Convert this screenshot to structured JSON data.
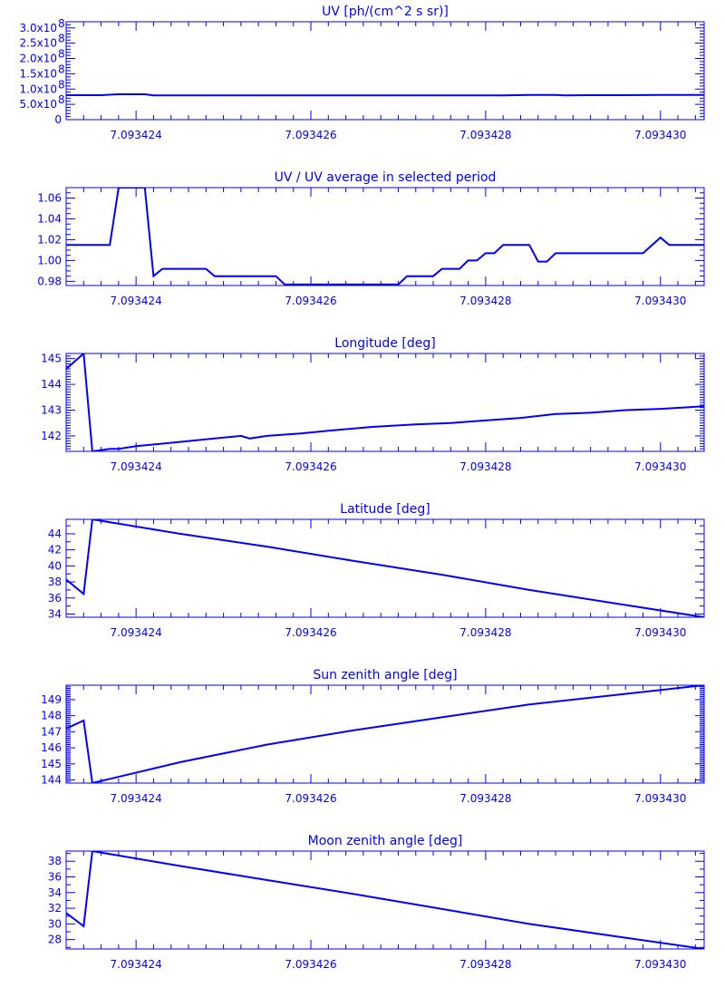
{
  "colors": {
    "plot": "#0000ff",
    "background": "#ffffff"
  },
  "chart_data": [
    {
      "type": "line",
      "title": "UV [ph/(cm^2 s sr)]",
      "xlim": [
        7.0934232,
        7.0934305
      ],
      "x_tick_values": [
        7.093424,
        7.093426,
        7.093428,
        7.09343
      ],
      "x_tick_labels": [
        "7.093424",
        "7.093426",
        "7.093428",
        "7.093430"
      ],
      "ylim": [
        0,
        320000000.0
      ],
      "y_tick_values": [
        0,
        50000000.0,
        100000000.0,
        150000000.0,
        200000000.0,
        250000000.0,
        300000000.0
      ],
      "y_tick_labels": [
        "0",
        "5.0x10",
        "1.0x10",
        "1.5x10",
        "2.0x10",
        "2.5x10",
        "3.0x10"
      ],
      "y_tick_exponents": [
        "",
        "8",
        "8",
        "8",
        "8",
        "8",
        "8"
      ],
      "y_minor_per_major": 5,
      "x_minor_per_major": 10,
      "points": [
        [
          7.0934232,
          80000000.0
        ],
        [
          7.0934236,
          80000000.0
        ],
        [
          7.0934238,
          83000000.0
        ],
        [
          7.0934241,
          83000000.0
        ],
        [
          7.0934242,
          79000000.0
        ],
        [
          7.0934246,
          79000000.0
        ],
        [
          7.093425,
          79000000.0
        ],
        [
          7.0934254,
          79000000.0
        ],
        [
          7.0934258,
          79000000.0
        ],
        [
          7.0934262,
          79000000.0
        ],
        [
          7.0934266,
          79000000.0
        ],
        [
          7.093427,
          79000000.0
        ],
        [
          7.0934274,
          79000000.0
        ],
        [
          7.0934278,
          79000000.0
        ],
        [
          7.0934282,
          79000000.0
        ],
        [
          7.0934285,
          81000000.0
        ],
        [
          7.0934288,
          81000000.0
        ],
        [
          7.0934289,
          79000000.0
        ],
        [
          7.0934292,
          80000000.0
        ],
        [
          7.0934296,
          80000000.0
        ],
        [
          7.09343,
          81000000.0
        ],
        [
          7.0934305,
          81000000.0
        ]
      ]
    },
    {
      "type": "line",
      "title": "UV / UV average in selected period",
      "xlim": [
        7.0934232,
        7.0934305
      ],
      "x_tick_values": [
        7.093424,
        7.093426,
        7.093428,
        7.09343
      ],
      "x_tick_labels": [
        "7.093424",
        "7.093426",
        "7.093428",
        "7.093430"
      ],
      "ylim": [
        0.976,
        1.07
      ],
      "y_tick_values": [
        0.98,
        1.0,
        1.02,
        1.04,
        1.06
      ],
      "y_tick_labels": [
        "0.98",
        "1.00",
        "1.02",
        "1.04",
        "1.06"
      ],
      "y_minor_per_major": 4,
      "x_minor_per_major": 10,
      "points": [
        [
          7.0934232,
          1.015
        ],
        [
          7.0934237,
          1.015
        ],
        [
          7.0934238,
          1.07
        ],
        [
          7.0934241,
          1.07
        ],
        [
          7.0934242,
          0.985
        ],
        [
          7.0934243,
          0.992
        ],
        [
          7.0934248,
          0.992
        ],
        [
          7.0934249,
          0.985
        ],
        [
          7.0934256,
          0.985
        ],
        [
          7.0934257,
          0.977
        ],
        [
          7.093427,
          0.977
        ],
        [
          7.0934271,
          0.985
        ],
        [
          7.0934274,
          0.985
        ],
        [
          7.0934275,
          0.992
        ],
        [
          7.0934277,
          0.992
        ],
        [
          7.0934278,
          1.0
        ],
        [
          7.0934279,
          1.0
        ],
        [
          7.093428,
          1.007
        ],
        [
          7.0934281,
          1.007
        ],
        [
          7.0934282,
          1.015
        ],
        [
          7.0934285,
          1.015
        ],
        [
          7.0934286,
          0.999
        ],
        [
          7.0934287,
          0.999
        ],
        [
          7.0934288,
          1.007
        ],
        [
          7.0934298,
          1.007
        ],
        [
          7.09343,
          1.022
        ],
        [
          7.0934301,
          1.015
        ],
        [
          7.0934305,
          1.015
        ]
      ]
    },
    {
      "type": "line",
      "title": "Longitude [deg]",
      "xlim": [
        7.0934232,
        7.0934305
      ],
      "x_tick_values": [
        7.093424,
        7.093426,
        7.093428,
        7.09343
      ],
      "x_tick_labels": [
        "7.093424",
        "7.093426",
        "7.093428",
        "7.093430"
      ],
      "ylim": [
        141.4,
        145.2
      ],
      "y_tick_values": [
        142,
        143,
        144,
        145
      ],
      "y_tick_labels": [
        "142",
        "143",
        "144",
        "145"
      ],
      "y_minor_per_major": 10,
      "x_minor_per_major": 10,
      "points": [
        [
          7.0934232,
          144.6
        ],
        [
          7.0934234,
          145.2
        ],
        [
          7.0934235,
          141.4
        ],
        [
          7.0934237,
          141.5
        ],
        [
          7.0934238,
          141.5
        ],
        [
          7.093424,
          141.6
        ],
        [
          7.0934243,
          141.7
        ],
        [
          7.0934246,
          141.8
        ],
        [
          7.0934249,
          141.9
        ],
        [
          7.0934252,
          142.0
        ],
        [
          7.0934253,
          141.9
        ],
        [
          7.0934255,
          142.0
        ],
        [
          7.0934259,
          142.1
        ],
        [
          7.0934262,
          142.2
        ],
        [
          7.0934267,
          142.35
        ],
        [
          7.0934272,
          142.45
        ],
        [
          7.0934276,
          142.5
        ],
        [
          7.093428,
          142.6
        ],
        [
          7.0934284,
          142.7
        ],
        [
          7.0934288,
          142.85
        ],
        [
          7.0934292,
          142.9
        ],
        [
          7.0934296,
          143.0
        ],
        [
          7.09343,
          143.05
        ],
        [
          7.0934305,
          143.15
        ]
      ]
    },
    {
      "type": "line",
      "title": "Latitude [deg]",
      "xlim": [
        7.0934232,
        7.0934305
      ],
      "x_tick_values": [
        7.093424,
        7.093426,
        7.093428,
        7.09343
      ],
      "x_tick_labels": [
        "7.093424",
        "7.093426",
        "7.093428",
        "7.093430"
      ],
      "ylim": [
        33.6,
        45.8
      ],
      "y_tick_values": [
        34,
        36,
        38,
        40,
        42,
        44
      ],
      "y_tick_labels": [
        "34",
        "36",
        "38",
        "40",
        "42",
        "44"
      ],
      "y_minor_per_major": 2,
      "x_minor_per_major": 10,
      "points": [
        [
          7.0934232,
          38.3
        ],
        [
          7.0934234,
          36.5
        ],
        [
          7.0934235,
          45.8
        ],
        [
          7.0934245,
          44.0
        ],
        [
          7.0934255,
          42.4
        ],
        [
          7.0934265,
          40.6
        ],
        [
          7.0934275,
          38.9
        ],
        [
          7.0934285,
          37.0
        ],
        [
          7.0934295,
          35.3
        ],
        [
          7.0934305,
          33.6
        ]
      ]
    },
    {
      "type": "line",
      "title": "Sun zenith angle [deg]",
      "xlim": [
        7.0934232,
        7.0934305
      ],
      "x_tick_values": [
        7.093424,
        7.093426,
        7.093428,
        7.09343
      ],
      "x_tick_labels": [
        "7.093424",
        "7.093426",
        "7.093428",
        "7.093430"
      ],
      "ylim": [
        143.8,
        149.9
      ],
      "y_tick_values": [
        144,
        145,
        146,
        147,
        148,
        149
      ],
      "y_tick_labels": [
        "144",
        "145",
        "146",
        "147",
        "148",
        "149"
      ],
      "y_minor_per_major": 10,
      "x_minor_per_major": 10,
      "points": [
        [
          7.0934232,
          147.2
        ],
        [
          7.0934234,
          147.7
        ],
        [
          7.0934235,
          143.8
        ],
        [
          7.0934245,
          145.1
        ],
        [
          7.0934255,
          146.2
        ],
        [
          7.0934265,
          147.1
        ],
        [
          7.0934275,
          147.9
        ],
        [
          7.0934285,
          148.7
        ],
        [
          7.0934295,
          149.3
        ],
        [
          7.0934305,
          149.9
        ]
      ]
    },
    {
      "type": "line",
      "title": "Moon zenith angle [deg]",
      "xlim": [
        7.0934232,
        7.0934305
      ],
      "x_tick_values": [
        7.093424,
        7.093426,
        7.093428,
        7.09343
      ],
      "x_tick_labels": [
        "7.093424",
        "7.093426",
        "7.093428",
        "7.093430"
      ],
      "ylim": [
        26.8,
        39.3
      ],
      "y_tick_values": [
        28,
        30,
        32,
        34,
        36,
        38
      ],
      "y_tick_labels": [
        "28",
        "30",
        "32",
        "34",
        "36",
        "38"
      ],
      "y_minor_per_major": 2,
      "x_minor_per_major": 10,
      "points": [
        [
          7.0934232,
          31.4
        ],
        [
          7.0934234,
          29.7
        ],
        [
          7.0934235,
          39.3
        ],
        [
          7.0934245,
          37.4
        ],
        [
          7.0934255,
          35.6
        ],
        [
          7.0934265,
          33.8
        ],
        [
          7.0934275,
          31.9
        ],
        [
          7.0934285,
          30.0
        ],
        [
          7.0934295,
          28.4
        ],
        [
          7.0934305,
          26.8
        ]
      ]
    }
  ]
}
